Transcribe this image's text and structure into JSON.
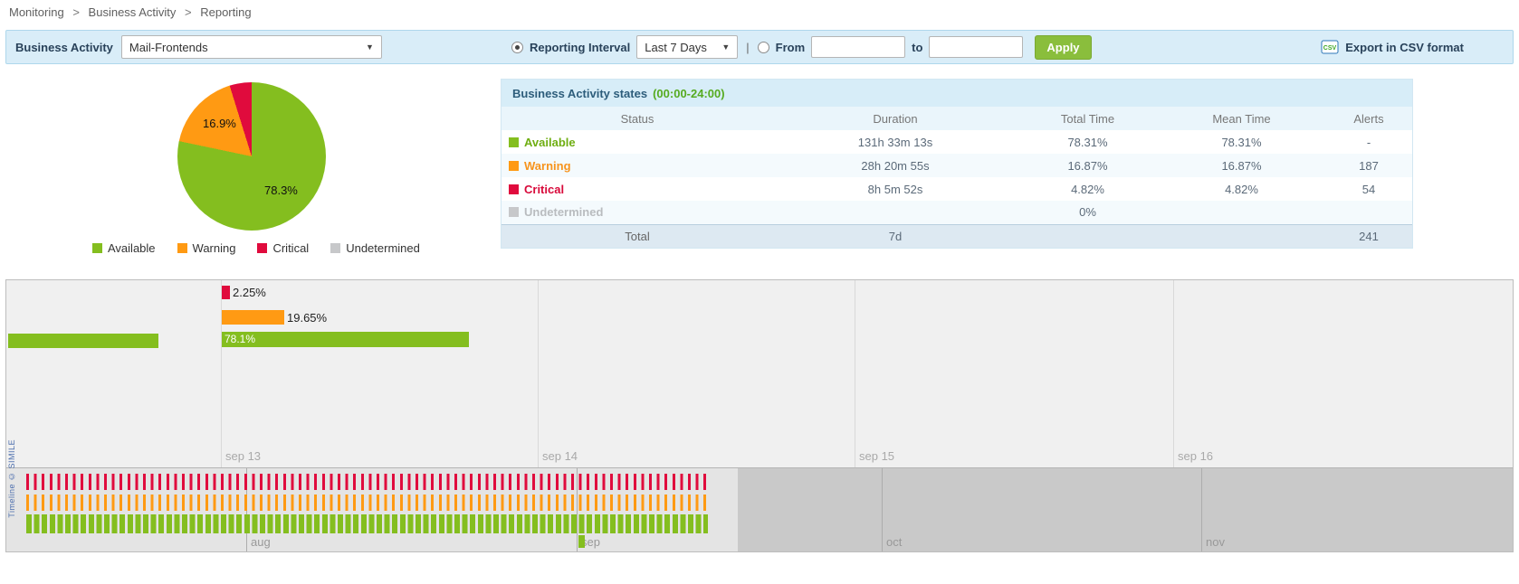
{
  "colors": {
    "available": "#84be1f",
    "warning": "#ff9a13",
    "critical": "#e00b3d",
    "undetermined": "#c7c8ca",
    "toolbar_bg": "#d9edf8",
    "apply_button": "#8abe3c",
    "panel_header_bg": "#d7edf8",
    "panel_title_text": "#2d5d7b",
    "interval_green_text": "#56ab20"
  },
  "breadcrumb": {
    "separator": ">",
    "items": [
      "Monitoring",
      "Business Activity",
      "Reporting"
    ]
  },
  "toolbar": {
    "business_activity_label": "Business Activity",
    "business_activity_value": "Mail-Frontends",
    "reporting_interval_label": "Reporting Interval",
    "reporting_interval_value": "Last 7 Days",
    "separator": "|",
    "from_label": "From",
    "from_value": "",
    "to_label": "to",
    "to_value": "",
    "apply_label": "Apply",
    "csv_icon_text": "CSV",
    "export_label": "Export in CSV format"
  },
  "pie": {
    "label_warning": "16.9%",
    "label_available": "78.3%",
    "legend": [
      "Available",
      "Warning",
      "Critical",
      "Undetermined"
    ]
  },
  "states_table": {
    "title": "Business Activity states",
    "title_suffix": "(00:00-24:00)",
    "columns": [
      "Status",
      "Duration",
      "Total Time",
      "Mean Time",
      "Alerts"
    ],
    "rows": [
      {
        "status": "Available",
        "duration": "131h 33m 13s",
        "total_time": "78.31%",
        "mean_time": "78.31%",
        "alerts": "-"
      },
      {
        "status": "Warning",
        "duration": "28h 20m 55s",
        "total_time": "16.87%",
        "mean_time": "16.87%",
        "alerts": "187"
      },
      {
        "status": "Critical",
        "duration": "8h 5m 52s",
        "total_time": "4.82%",
        "mean_time": "4.82%",
        "alerts": "54"
      },
      {
        "status": "Undetermined",
        "duration": "",
        "total_time": "0%",
        "mean_time": "",
        "alerts": ""
      }
    ],
    "total_row": {
      "label": "Total",
      "duration": "7d",
      "total_time": "",
      "mean_time": "",
      "alerts": "241"
    }
  },
  "timeline": {
    "dates": [
      "sep 13",
      "sep 14",
      "sep 15",
      "sep 16"
    ],
    "months": [
      "aug",
      "sep",
      "oct",
      "nov"
    ],
    "bar_labels": {
      "critical": "2.25%",
      "warning": "19.65%",
      "available": "78.1%"
    },
    "credit": "Timeline © SIMILE"
  },
  "chart_data": [
    {
      "type": "pie",
      "labels": [
        "Available",
        "Warning",
        "Critical",
        "Undetermined"
      ],
      "values": [
        78.3,
        16.9,
        4.8,
        0
      ],
      "colors": [
        "#84be1f",
        "#ff9a13",
        "#e00b3d",
        "#c7c8ca"
      ],
      "data_labels": [
        "78.3%",
        "16.9%"
      ],
      "legend_position": "bottom"
    },
    {
      "type": "bar",
      "title": "Timeline band bars (percent of reporting interval, day width = 100%)",
      "categories": [
        "Critical",
        "Warning",
        "Available"
      ],
      "values": [
        2.25,
        19.65,
        78.1
      ],
      "colors": [
        "#e00b3d",
        "#ff9a13",
        "#84be1f"
      ],
      "x_ticks": [
        "sep 13",
        "sep 14",
        "sep 15",
        "sep 16"
      ],
      "overview_months": [
        "aug",
        "sep",
        "oct",
        "nov"
      ]
    }
  ]
}
